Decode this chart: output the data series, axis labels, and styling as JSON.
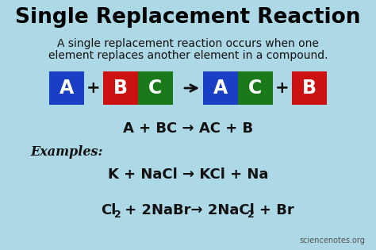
{
  "title": "Single Replacement Reaction",
  "subtitle_line1": "A single replacement reaction occurs when one",
  "subtitle_line2": "element replaces another element in a compound.",
  "bg_color": "#add8e6",
  "title_color": "#000000",
  "subtitle_color": "#111111",
  "box_A_color": "#1a3ec4",
  "box_B_color": "#cc1111",
  "box_C_color": "#1a7a1a",
  "equation_text": "A + BC → AC + B",
  "examples_label": "Examples:",
  "example1": "K + NaCl → KCl + Na",
  "watermark": "sciencenotes.org"
}
